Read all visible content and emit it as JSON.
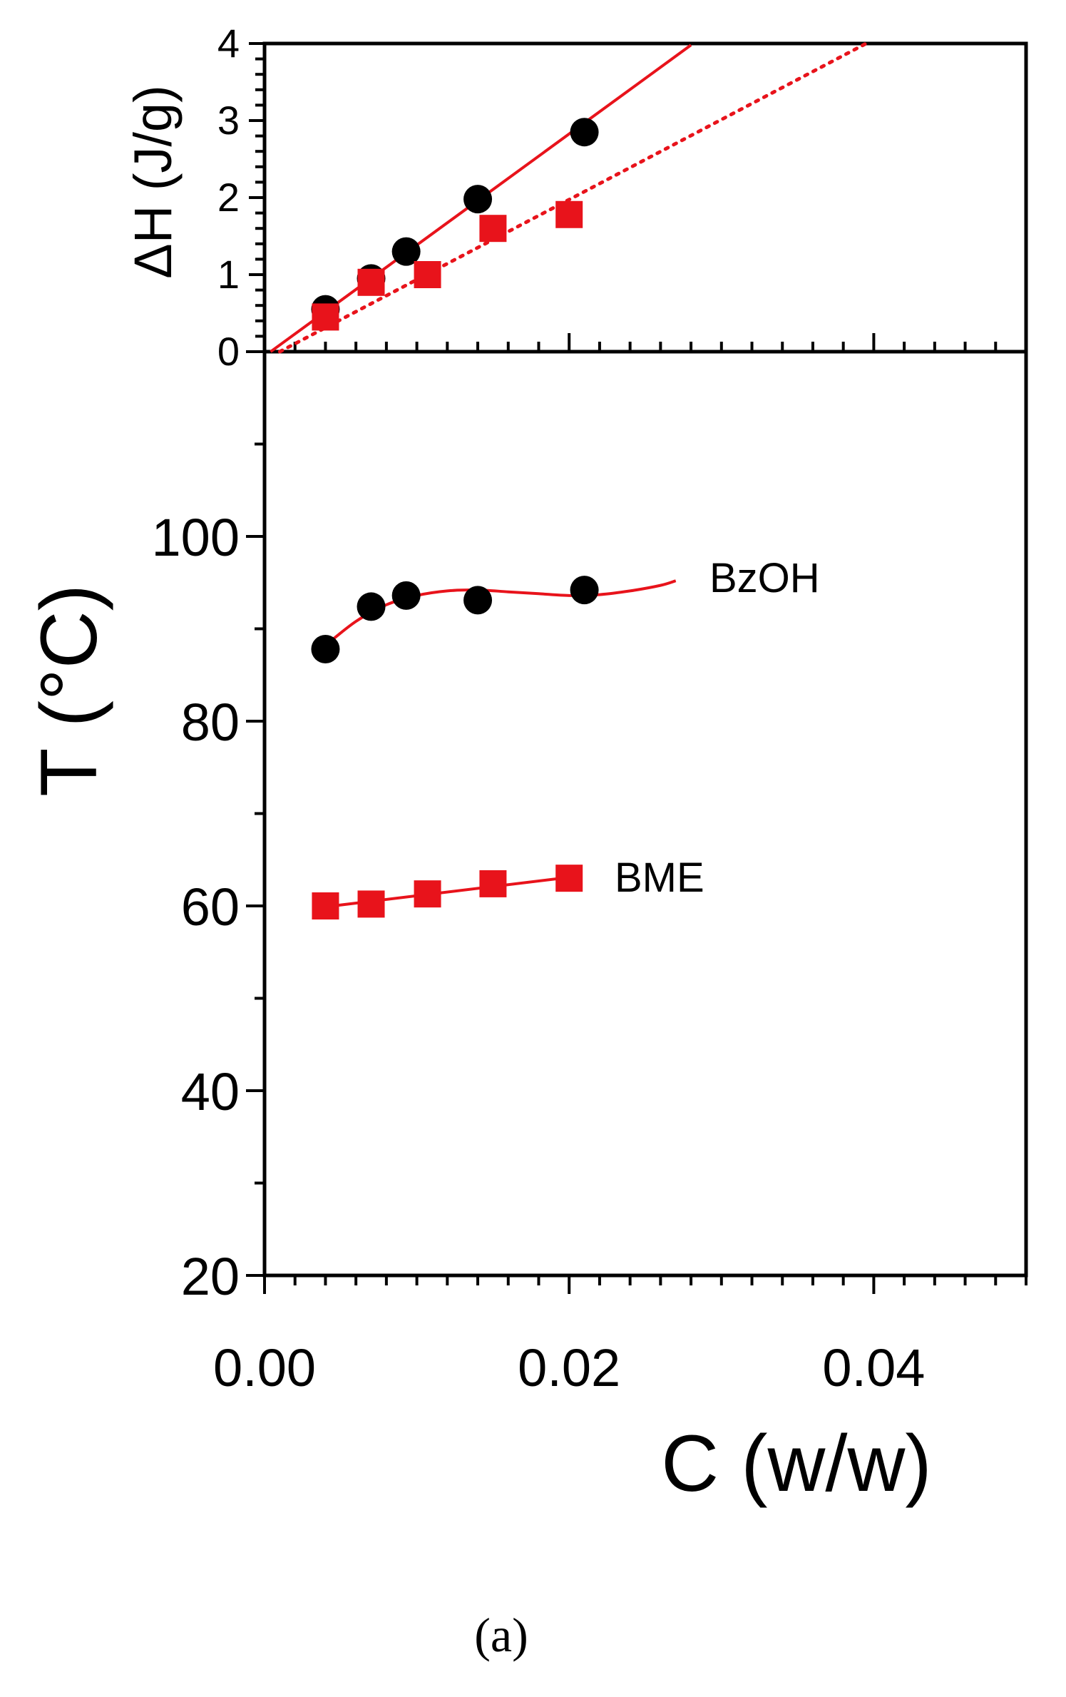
{
  "caption": "(a)",
  "chart_data": [
    {
      "type": "scatter",
      "panel": "top",
      "ylabel": "ΔH (J/g)",
      "xlim": [
        0,
        0.05
      ],
      "ylim": [
        0,
        4
      ],
      "y_ticks": [
        0,
        1,
        2,
        3,
        4
      ],
      "grid": false,
      "series": [
        {
          "marker": "circle",
          "color": "#000000",
          "x": [
            0.004,
            0.007,
            0.0093,
            0.014,
            0.021
          ],
          "y": [
            0.55,
            0.95,
            1.3,
            1.98,
            2.85
          ],
          "fit": {
            "style": "solid",
            "color": "#e8131b",
            "x": [
              0.0004,
              0.028
            ],
            "y": [
              0,
              3.98
            ]
          }
        },
        {
          "marker": "square",
          "color": "#e8131b",
          "x": [
            0.004,
            0.007,
            0.0107,
            0.015,
            0.02
          ],
          "y": [
            0.45,
            0.9,
            1.0,
            1.6,
            1.78
          ],
          "fit": {
            "style": "dotted",
            "color": "#e8131b",
            "x": [
              0.001,
              0.0395
            ],
            "y": [
              0,
              4.0
            ]
          }
        }
      ]
    },
    {
      "type": "scatter",
      "panel": "bottom",
      "xlabel": "C (w/w)",
      "ylabel": "T (°C)",
      "xlim": [
        0,
        0.05
      ],
      "ylim": [
        20,
        120
      ],
      "x_ticks": [
        0.0,
        0.02,
        0.04
      ],
      "x_tick_labels": [
        "0.00",
        "0.02",
        "0.04"
      ],
      "y_ticks": [
        20,
        40,
        60,
        80,
        100
      ],
      "grid": false,
      "series": [
        {
          "name": "BzOH",
          "marker": "circle",
          "color": "#000000",
          "x": [
            0.004,
            0.007,
            0.0093,
            0.014,
            0.021
          ],
          "y": [
            87.8,
            92.4,
            93.6,
            93.1,
            94.2
          ],
          "fit": {
            "style": "solid",
            "color": "#e8131b",
            "x": [
              0.004,
              0.006,
              0.008,
              0.01,
              0.012,
              0.014,
              0.016,
              0.018,
              0.02,
              0.022,
              0.024,
              0.026,
              0.027
            ],
            "y": [
              88.2,
              90.8,
              92.6,
              93.6,
              94.1,
              94.2,
              94.0,
              93.8,
              93.6,
              93.7,
              94.1,
              94.7,
              95.2
            ]
          }
        },
        {
          "name": "BME",
          "marker": "square",
          "color": "#e8131b",
          "x": [
            0.004,
            0.007,
            0.0107,
            0.015,
            0.02
          ],
          "y": [
            60.0,
            60.2,
            61.3,
            62.4,
            63.0
          ],
          "fit": {
            "style": "solid",
            "color": "#e8131b",
            "x": [
              0.004,
              0.02
            ],
            "y": [
              59.9,
              63.1
            ]
          }
        }
      ],
      "annotations": [
        "BzOH",
        "BME"
      ]
    }
  ]
}
